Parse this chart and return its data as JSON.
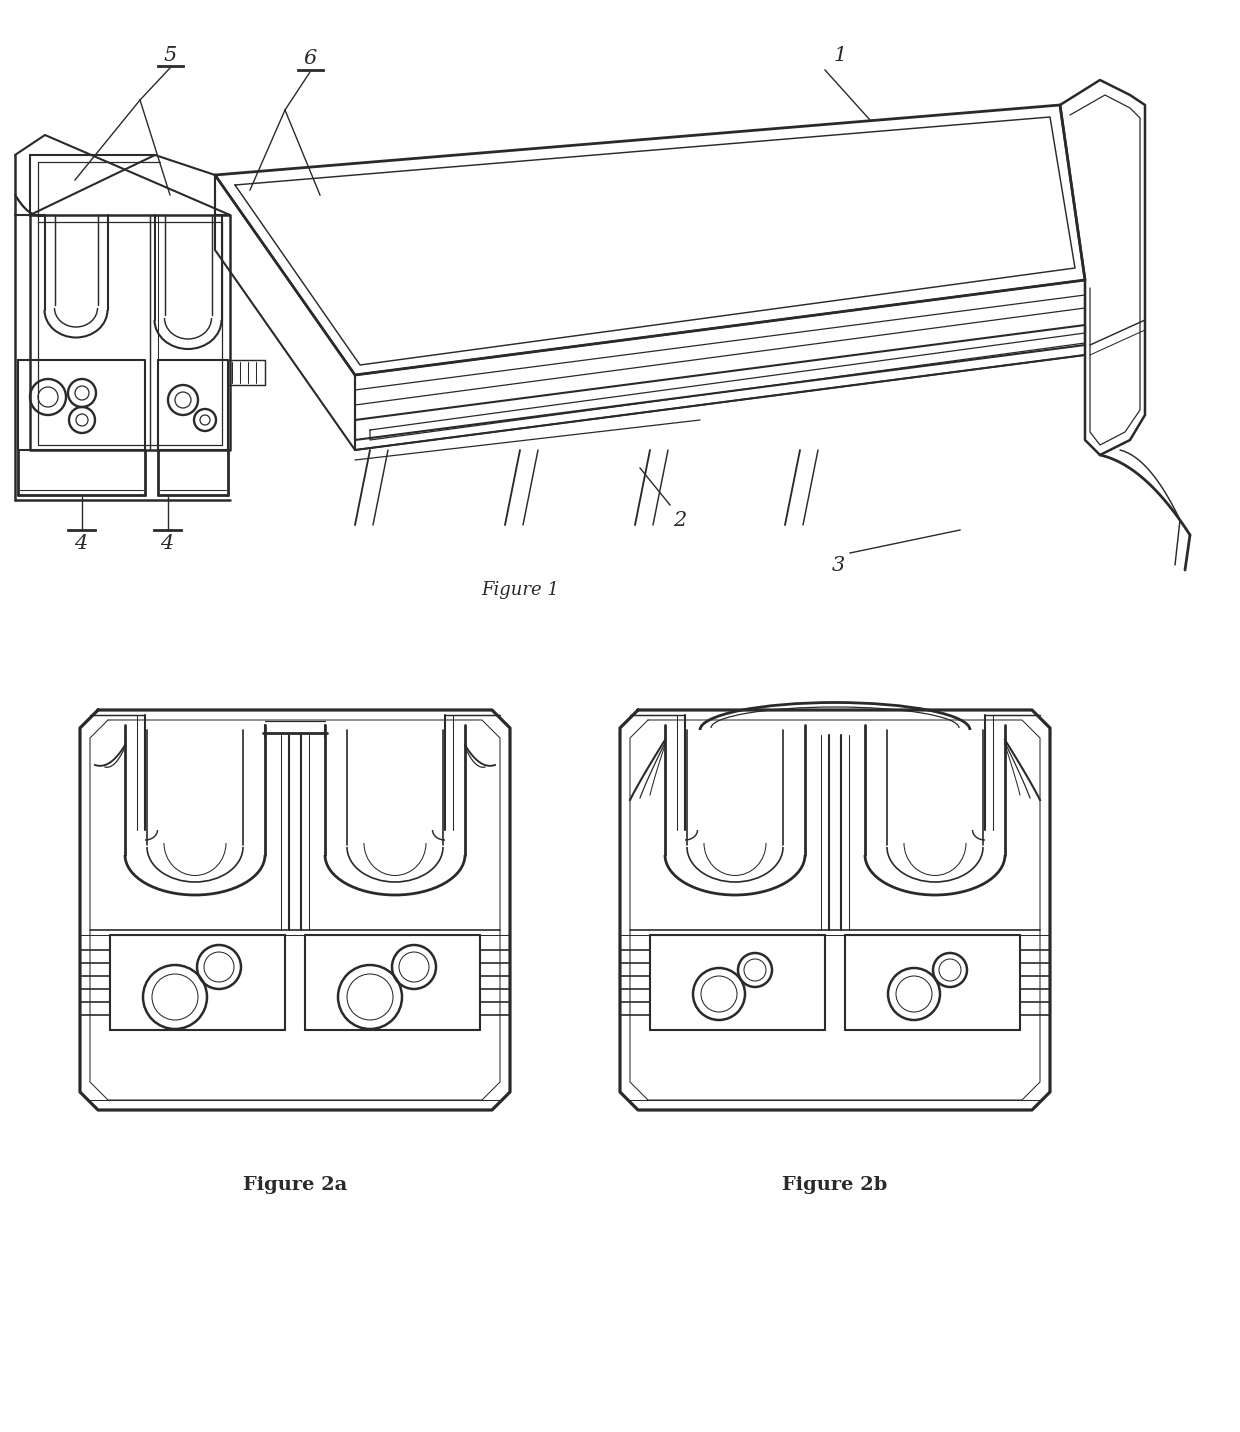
{
  "background_color": "#ffffff",
  "line_color": "#2a2a2a",
  "line_width": 1.5,
  "fig1_caption": "Figure 1",
  "fig2a_caption": "Figure 2a",
  "fig2b_caption": "Figure 2b",
  "caption_fontsize": 13,
  "label_fontsize": 15
}
